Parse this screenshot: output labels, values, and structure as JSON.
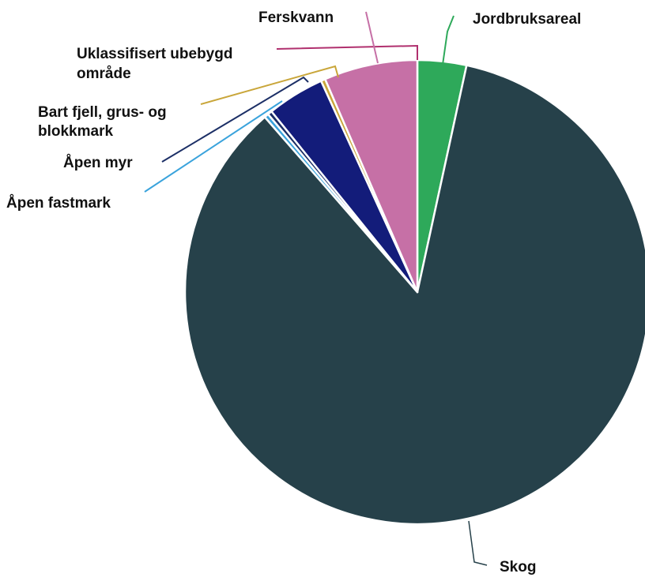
{
  "chart_data": {
    "type": "pie",
    "title": "",
    "legend": "none",
    "labels_outside_with_leader_lines": true,
    "series": [
      {
        "label": "Jordbruksareal",
        "value": 3.4,
        "color": "#2ea95a"
      },
      {
        "label": "Skog",
        "value": 85.2,
        "color": "#26414a"
      },
      {
        "label": "Åpen fastmark",
        "value": 0.3,
        "color": "#3aa3dc"
      },
      {
        "label": "Åpen myr",
        "value": 0.3,
        "color": "#1c2f66"
      },
      {
        "label": "Bart fjell, grus- og blokkmark",
        "value": 4.0,
        "color": "#131c7a"
      },
      {
        "label": "Uklassifisert ubebygd område",
        "value": 0.3,
        "color": "#c9a63a"
      },
      {
        "label": "Ferskvann",
        "value": 6.5,
        "color": "#c670a6"
      }
    ]
  }
}
